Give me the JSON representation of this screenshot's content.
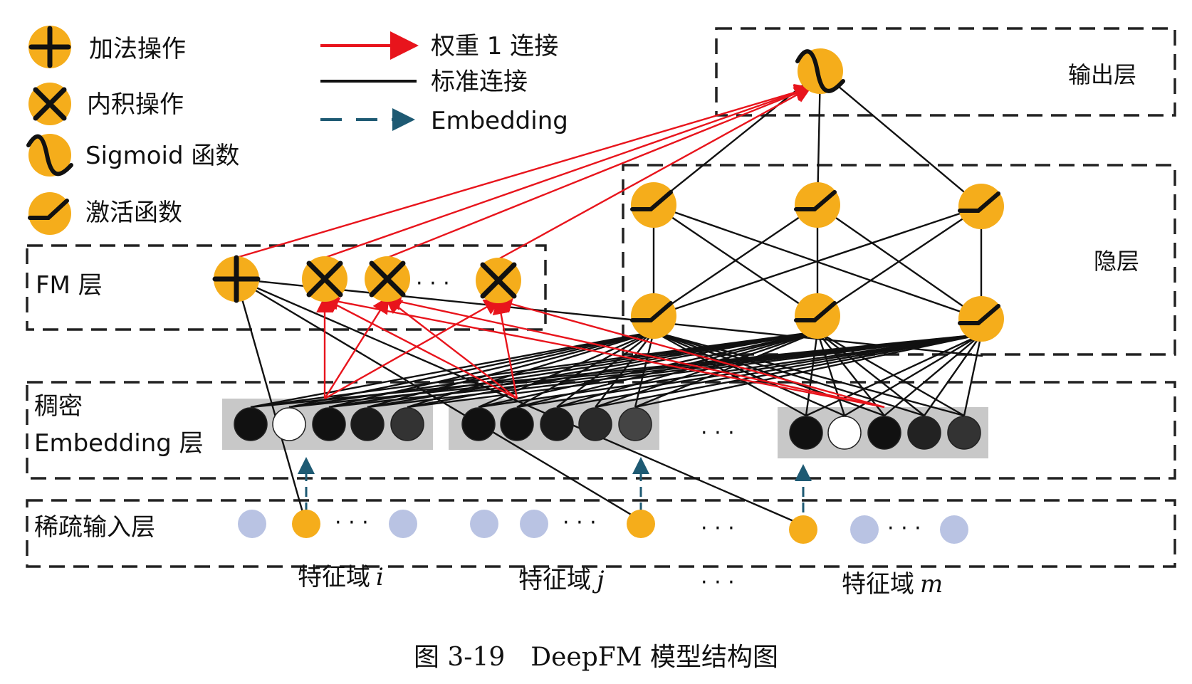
{
  "legend": {
    "add_op": "加法操作",
    "inner_product_op": "内积操作",
    "sigmoid_fn": "Sigmoid 函数",
    "activation_fn": "激活函数",
    "weight1_link": "权重 1 连接",
    "standard_link": "标准连接",
    "embedding_link": "Embedding"
  },
  "layers": {
    "output": "输出层",
    "hidden": "隐层",
    "fm": "FM 层",
    "dense_line1": "稠密",
    "dense_line2": "Embedding 层",
    "sparse": "稀疏输入层"
  },
  "fields": [
    {
      "prefix": "特征域",
      "var": "i"
    },
    {
      "prefix": "特征域",
      "var": "j"
    },
    {
      "prefix": "特征域",
      "var": "m"
    }
  ],
  "ellipsis": "· · ·",
  "caption": "图 3-19　DeepFM 模型结构图",
  "colors": {
    "node_fill": "#f5ad1b",
    "sparse_inactive": "#b9c3e3",
    "weight_link": "#e8141c",
    "embedding_link": "#1e5a73",
    "embedding_box": "#c8c8c8"
  },
  "icons": {
    "add": "plus-icon",
    "inner_product": "cross-icon",
    "sigmoid": "sigmoid-icon",
    "activation": "activation-icon"
  }
}
